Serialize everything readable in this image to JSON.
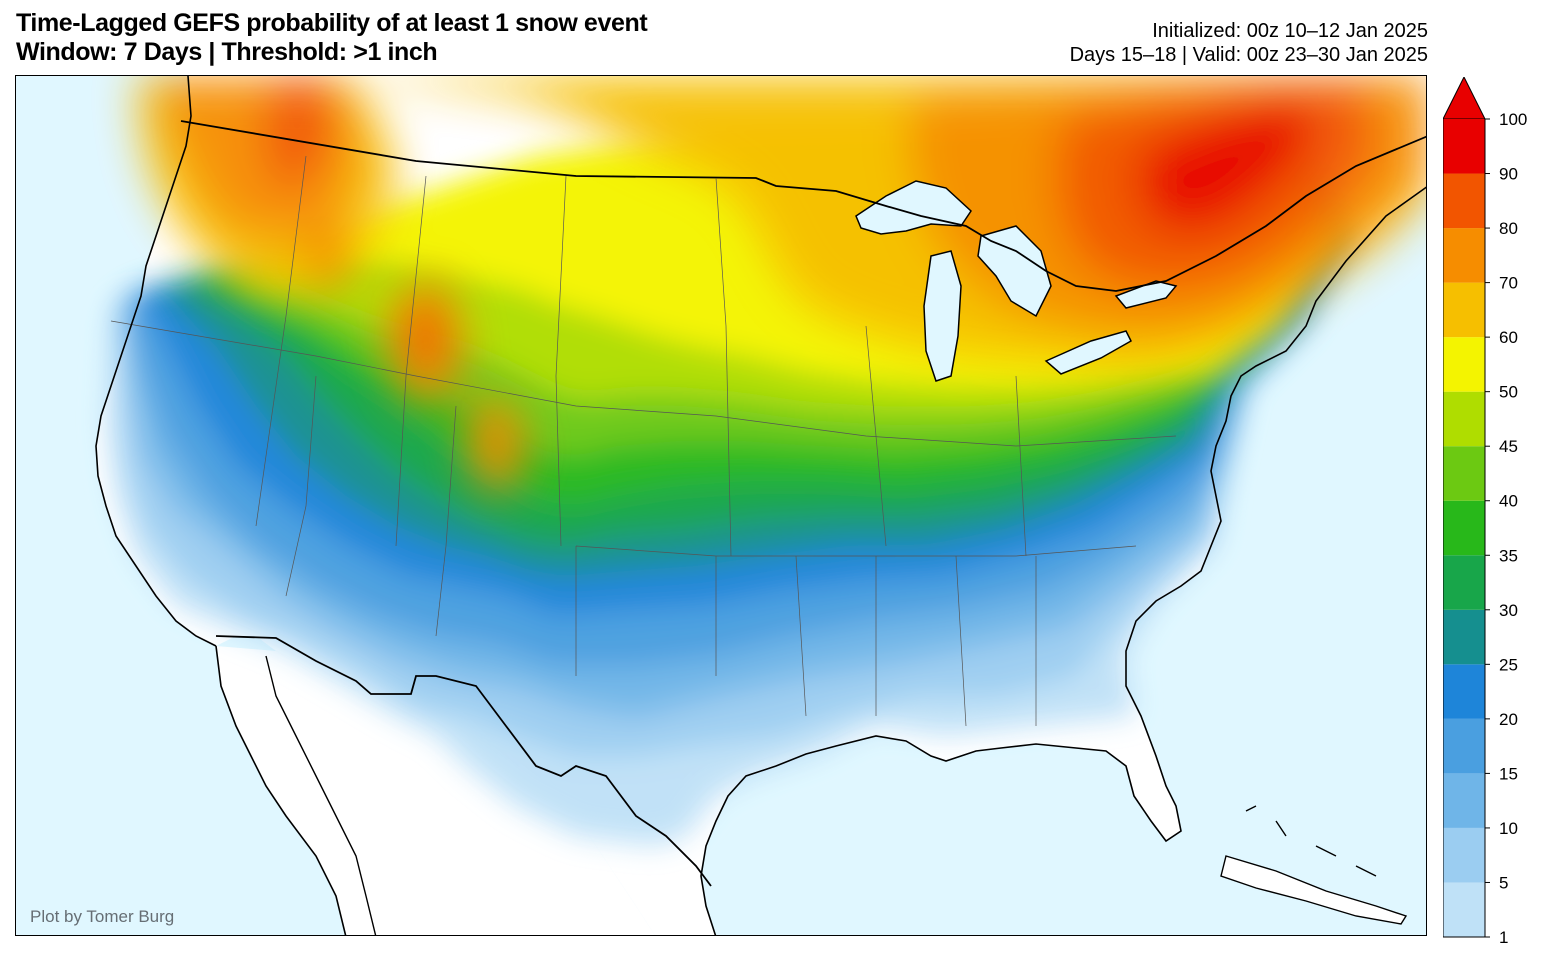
{
  "header": {
    "title_line1": "Time-Lagged GEFS probability of at least 1 snow event",
    "title_line2": "Window: 7 Days | Threshold: >1 inch",
    "init_line": "Initialized: 00z 10–12 Jan 2025",
    "valid_line": "Days 15–18 | Valid: 00z 23–30 Jan 2025"
  },
  "map": {
    "credit": "Plot by Tomer Burg",
    "ocean_color": "#e0f7ff",
    "land_color": "#ffffff"
  },
  "colorbar": {
    "levels": [
      "1",
      "5",
      "10",
      "15",
      "20",
      "25",
      "30",
      "35",
      "40",
      "45",
      "50",
      "60",
      "70",
      "80",
      "90",
      "100"
    ],
    "colors": [
      "#bfe1f7",
      "#9bcdf1",
      "#6fb5e8",
      "#4a9fe0",
      "#1e85d9",
      "#158f8f",
      "#18a64a",
      "#28b81a",
      "#6cc912",
      "#afdd00",
      "#f4f400",
      "#f6bf00",
      "#f68d00",
      "#f25500",
      "#e80000"
    ],
    "extend_color": "#e80000"
  }
}
